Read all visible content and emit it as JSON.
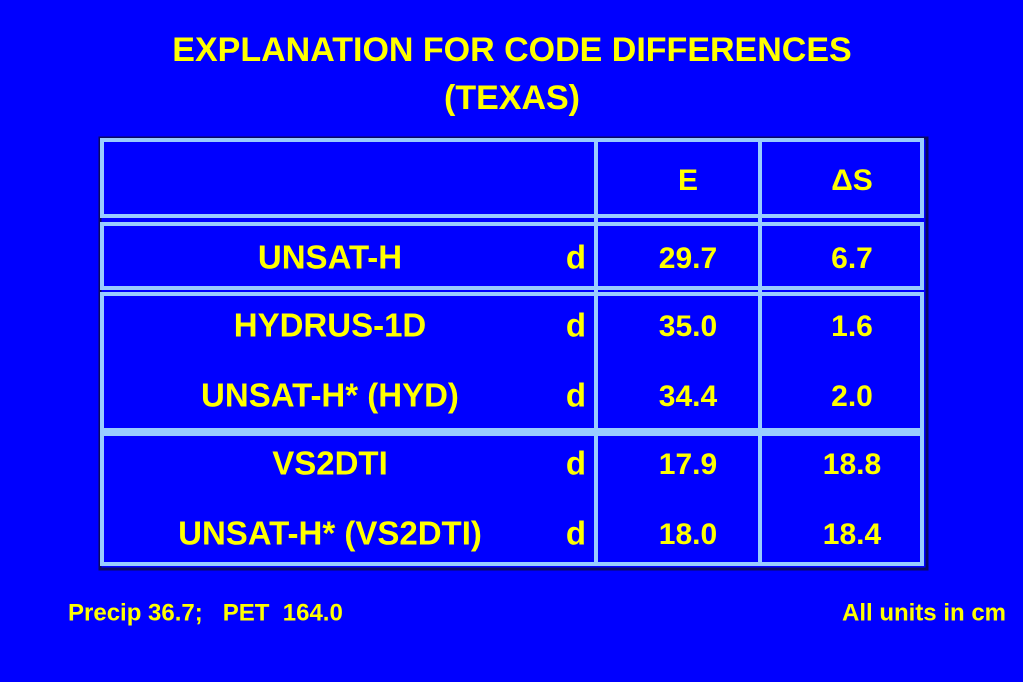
{
  "title": [
    "EXPLANATION FOR CODE DIFFERENCES",
    "(TEXAS)"
  ],
  "table": {
    "header": [
      "E",
      "ΔS"
    ],
    "groups": [
      {
        "rows": [
          [
            "UNSAT-H",
            "d",
            "29.7",
            "6.7"
          ]
        ]
      },
      {
        "rows": [
          [
            "HYDRUS-1D",
            "d",
            "35.0",
            "1.6"
          ],
          [
            "UNSAT-H* (HYD)",
            "d",
            "34.4",
            "2.0"
          ]
        ]
      },
      {
        "rows": [
          [
            "VS2DTI",
            "d",
            "17.9",
            "18.8"
          ],
          [
            "UNSAT-H* (VS2DTI)",
            "d",
            "18.0",
            "18.4"
          ]
        ]
      }
    ]
  },
  "footer": {
    "left": "Precip 36.7;   PET  164.0",
    "right": "All units in cm"
  }
}
